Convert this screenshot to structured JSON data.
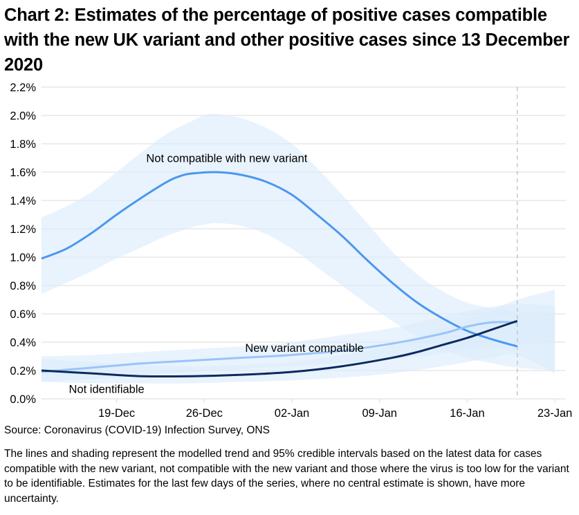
{
  "title": "Chart 2: Estimates of the percentage of positive cases compatible with the new UK variant and other positive cases since 13 December 2020",
  "source": "Source: Coronavirus (COVID-19) Infection Survey, ONS",
  "note": "The lines and shading represent the modelled trend and 95% credible intervals based on the latest data for cases compatible with the new variant, not compatible with the new variant and those where the virus is too low for the variant to be identifiable. Estimates for the last few days of the series, where no central estimate is shown, have more uncertainty.",
  "colors": {
    "not_compatible": "#4a97f0",
    "new_variant": "#99c4f7",
    "not_identifiable": "#0b2a5e",
    "band": "#dcebfc",
    "grid": "#e2e2e2",
    "divider": "#b9c1cc"
  },
  "chart_data": {
    "type": "line",
    "title": "Chart 2: Estimates of the percentage of positive cases compatible with the new UK variant and other positive cases since 13 December 2020",
    "xlabel": "",
    "ylabel": "",
    "x_unit": "days since 13-Dec-2020",
    "xlim": [
      0,
      41
    ],
    "ylim": [
      0,
      2.2
    ],
    "y_ticks": [
      0,
      0.2,
      0.4,
      0.6,
      0.8,
      1.0,
      1.2,
      1.4,
      1.6,
      1.8,
      2.0,
      2.2
    ],
    "y_tick_labels": [
      "0.0%",
      "0.2%",
      "0.4%",
      "0.6%",
      "0.8%",
      "1.0%",
      "1.2%",
      "1.4%",
      "1.6%",
      "1.8%",
      "2.0%",
      "2.2%"
    ],
    "x_ticks": [
      6,
      13,
      20,
      27,
      34,
      41
    ],
    "x_tick_labels": [
      "19-Dec",
      "26-Dec",
      "02-Jan",
      "09-Jan",
      "16-Jan",
      "23-Jan"
    ],
    "grid": true,
    "legend": "inline-labels",
    "central_estimate_end": 38,
    "series": [
      {
        "name": "Not compatible with new variant",
        "key": "not_compatible",
        "x": [
          0,
          2,
          4,
          6,
          8,
          10,
          11,
          12,
          14,
          16,
          18,
          20,
          22,
          24,
          26,
          28,
          30,
          32,
          34,
          36,
          38
        ],
        "y": [
          0.99,
          1.06,
          1.17,
          1.3,
          1.42,
          1.53,
          1.57,
          1.59,
          1.6,
          1.58,
          1.53,
          1.44,
          1.3,
          1.15,
          0.98,
          0.82,
          0.68,
          0.57,
          0.48,
          0.42,
          0.37
        ],
        "band_x": [
          0,
          2,
          4,
          6,
          8,
          10,
          12,
          13,
          14,
          16,
          18,
          20,
          22,
          24,
          26,
          28,
          30,
          32,
          34,
          36,
          38,
          41
        ],
        "lower": [
          0.74,
          0.82,
          0.9,
          0.99,
          1.07,
          1.15,
          1.21,
          1.23,
          1.24,
          1.22,
          1.16,
          1.06,
          0.93,
          0.8,
          0.67,
          0.55,
          0.44,
          0.35,
          0.29,
          0.25,
          0.22,
          0.2
        ],
        "upper": [
          1.28,
          1.36,
          1.46,
          1.6,
          1.74,
          1.87,
          1.96,
          2.0,
          2.01,
          1.98,
          1.91,
          1.8,
          1.63,
          1.44,
          1.24,
          1.04,
          0.88,
          0.76,
          0.68,
          0.64,
          0.62,
          0.6
        ]
      },
      {
        "name": "New variant compatible",
        "key": "new_variant",
        "x": [
          0,
          4,
          8,
          12,
          16,
          20,
          24,
          28,
          32,
          34,
          36,
          38
        ],
        "y": [
          0.19,
          0.22,
          0.25,
          0.27,
          0.29,
          0.31,
          0.34,
          0.39,
          0.46,
          0.51,
          0.54,
          0.54
        ],
        "band_x": [
          0,
          4,
          8,
          12,
          16,
          20,
          24,
          28,
          32,
          34,
          36,
          38,
          41
        ],
        "lower": [
          0.12,
          0.14,
          0.17,
          0.19,
          0.21,
          0.23,
          0.25,
          0.28,
          0.32,
          0.35,
          0.37,
          0.38,
          0.4
        ],
        "upper": [
          0.3,
          0.31,
          0.33,
          0.35,
          0.37,
          0.4,
          0.45,
          0.5,
          0.58,
          0.62,
          0.65,
          0.67,
          0.66
        ]
      },
      {
        "name": "Not identifiable",
        "key": "not_identifiable",
        "x": [
          0,
          4,
          8,
          12,
          16,
          20,
          24,
          28,
          30,
          32,
          34,
          36,
          38
        ],
        "y": [
          0.2,
          0.18,
          0.16,
          0.16,
          0.17,
          0.19,
          0.23,
          0.29,
          0.33,
          0.38,
          0.43,
          0.49,
          0.55
        ],
        "band_x": [
          0,
          4,
          8,
          12,
          16,
          20,
          24,
          28,
          32,
          34,
          36,
          38,
          41
        ],
        "lower": [
          0.12,
          0.11,
          0.11,
          0.11,
          0.12,
          0.13,
          0.15,
          0.18,
          0.23,
          0.26,
          0.29,
          0.31,
          0.18
        ],
        "upper": [
          0.28,
          0.26,
          0.24,
          0.23,
          0.24,
          0.26,
          0.31,
          0.38,
          0.49,
          0.56,
          0.63,
          0.7,
          0.77
        ]
      }
    ],
    "annotations": [
      {
        "text": "Not compatible with new variant",
        "series": "not_compatible",
        "x": 14.8,
        "y": 1.7
      },
      {
        "text": "New variant compatible",
        "series": "new_variant",
        "x": 21,
        "y": 0.36
      },
      {
        "text": "Not identifiable",
        "series": "not_identifiable",
        "x": 5.2,
        "y": 0.07
      }
    ]
  }
}
